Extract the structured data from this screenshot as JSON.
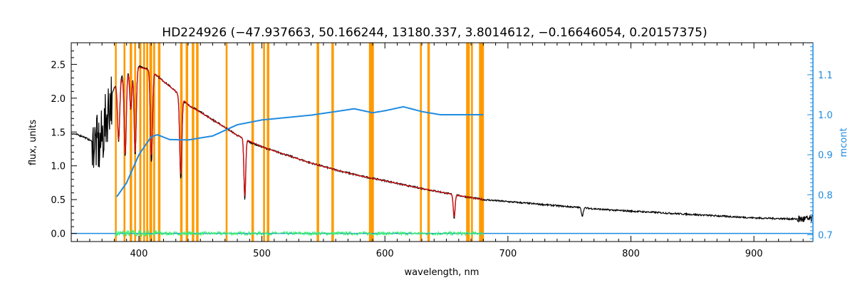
{
  "chart_data": {
    "type": "line",
    "title": "HD224926    (−47.937663, 50.166244, 13180.337, 3.8014612, −0.16646054, 0.20157375)",
    "xlabel": "wavelength, nm",
    "ylabel": "flux, units",
    "y2label": "mcont",
    "xlim": [
      345,
      948
    ],
    "ylim": [
      -0.12,
      2.82
    ],
    "y2lim": [
      0.683,
      1.18
    ],
    "xticks": [
      400,
      500,
      600,
      700,
      800,
      900
    ],
    "yticks": [
      0.0,
      0.5,
      1.0,
      1.5,
      2.0,
      2.5
    ],
    "y2ticks": [
      0.7,
      0.8,
      0.9,
      1.0,
      1.1
    ],
    "xtick_labels": [
      "400",
      "500",
      "600",
      "700",
      "800",
      "900"
    ],
    "ytick_labels": [
      "0.0",
      "0.5",
      "1.0",
      "1.5",
      "2.0",
      "2.5"
    ],
    "y2tick_labels": [
      "0.7",
      "0.8",
      "0.9",
      "1.0",
      "1.1"
    ],
    "grid": false,
    "colors": {
      "observed": "#000000",
      "model": "#d01010",
      "residual": "#3cf070",
      "mcont": "#1f8be0",
      "mask": "#ff9a00",
      "right_axis": "#1f8be0"
    },
    "mask_bands": [
      [
        380.5,
        381.8
      ],
      [
        387.5,
        389.0
      ],
      [
        392.5,
        394.5
      ],
      [
        396.2,
        397.6
      ],
      [
        400.3,
        402.0
      ],
      [
        403.5,
        405.0
      ],
      [
        406.0,
        407.5
      ],
      [
        408.5,
        410.8
      ],
      [
        411.6,
        413.2
      ],
      [
        415.5,
        417.5
      ],
      [
        433.5,
        435.5
      ],
      [
        438.0,
        440.0
      ],
      [
        443.0,
        445.0
      ],
      [
        446.5,
        448.5
      ],
      [
        470.5,
        472.0
      ],
      [
        491.5,
        493.5
      ],
      [
        501.0,
        502.5
      ],
      [
        504.0,
        506.0
      ],
      [
        544.5,
        546.5
      ],
      [
        556.5,
        558.5
      ],
      [
        587.0,
        591.0
      ],
      [
        628.5,
        630.0
      ],
      [
        634.5,
        636.5
      ],
      [
        666.0,
        669.0
      ],
      [
        670.0,
        671.5
      ],
      [
        676.5,
        680.5
      ]
    ],
    "series": [
      {
        "id": "observed",
        "x": [
          345,
          350,
          355,
          360,
          365,
          368,
          372,
          375,
          378,
          380,
          383,
          386,
          390,
          395,
          400,
          405,
          410,
          415,
          420,
          425,
          430,
          435,
          440,
          450,
          460,
          470,
          480,
          490,
          500,
          520,
          540,
          560,
          580,
          600,
          620,
          640,
          660,
          680,
          700,
          720,
          740,
          760,
          780,
          800,
          820,
          840,
          860,
          880,
          900,
          920,
          940,
          948
        ],
        "y": [
          1.48,
          1.46,
          1.43,
          1.38,
          1.32,
          1.28,
          1.55,
          1.85,
          2.05,
          2.15,
          2.25,
          2.33,
          2.4,
          2.44,
          2.47,
          2.45,
          2.4,
          2.33,
          2.25,
          2.18,
          2.1,
          1.98,
          1.9,
          1.8,
          1.68,
          1.57,
          1.45,
          1.35,
          1.28,
          1.16,
          1.04,
          0.94,
          0.85,
          0.78,
          0.7,
          0.63,
          0.56,
          0.5,
          0.47,
          0.44,
          0.41,
          0.38,
          0.35,
          0.33,
          0.31,
          0.29,
          0.27,
          0.25,
          0.23,
          0.22,
          0.21,
          0.21
        ]
      },
      {
        "id": "model",
        "x": [
          380,
          390,
          400,
          410,
          420,
          430,
          440,
          460,
          480,
          500,
          520,
          540,
          560,
          580,
          600,
          620,
          640,
          660,
          680
        ],
        "y": [
          2.15,
          2.38,
          2.46,
          2.41,
          2.25,
          2.1,
          1.9,
          1.68,
          1.45,
          1.28,
          1.16,
          1.04,
          0.94,
          0.85,
          0.78,
          0.7,
          0.63,
          0.56,
          0.5
        ]
      },
      {
        "id": "mcont",
        "x": [
          382,
          390,
          400,
          410,
          415,
          425,
          440,
          460,
          480,
          500,
          520,
          540,
          560,
          575,
          590,
          600,
          615,
          630,
          645,
          660,
          680
        ],
        "y2": [
          0.795,
          0.83,
          0.9,
          0.945,
          0.95,
          0.938,
          0.937,
          0.947,
          0.975,
          0.987,
          0.993,
          0.999,
          1.008,
          1.015,
          1.005,
          1.01,
          1.02,
          1.008,
          1.0,
          1.0,
          1.0
        ]
      },
      {
        "id": "residual",
        "x": [
          381,
          680
        ],
        "y": [
          0.0,
          0.0
        ]
      },
      {
        "id": "zero-line",
        "x": [
          345,
          948
        ],
        "y": [
          0.0,
          0.0
        ]
      }
    ],
    "absorption_lines": [
      {
        "x": 383.5,
        "depth": 0.9
      },
      {
        "x": 388.9,
        "depth": 1.25
      },
      {
        "x": 397.0,
        "depth": 1.3
      },
      {
        "x": 410.2,
        "depth": 1.35
      },
      {
        "x": 434.0,
        "depth": 1.2
      },
      {
        "x": 486.1,
        "depth": 0.9
      },
      {
        "x": 656.3,
        "depth": 0.35
      },
      {
        "x": 760.5,
        "depth": 0.12
      },
      {
        "x": 393.4,
        "depth": 0.6
      }
    ]
  }
}
